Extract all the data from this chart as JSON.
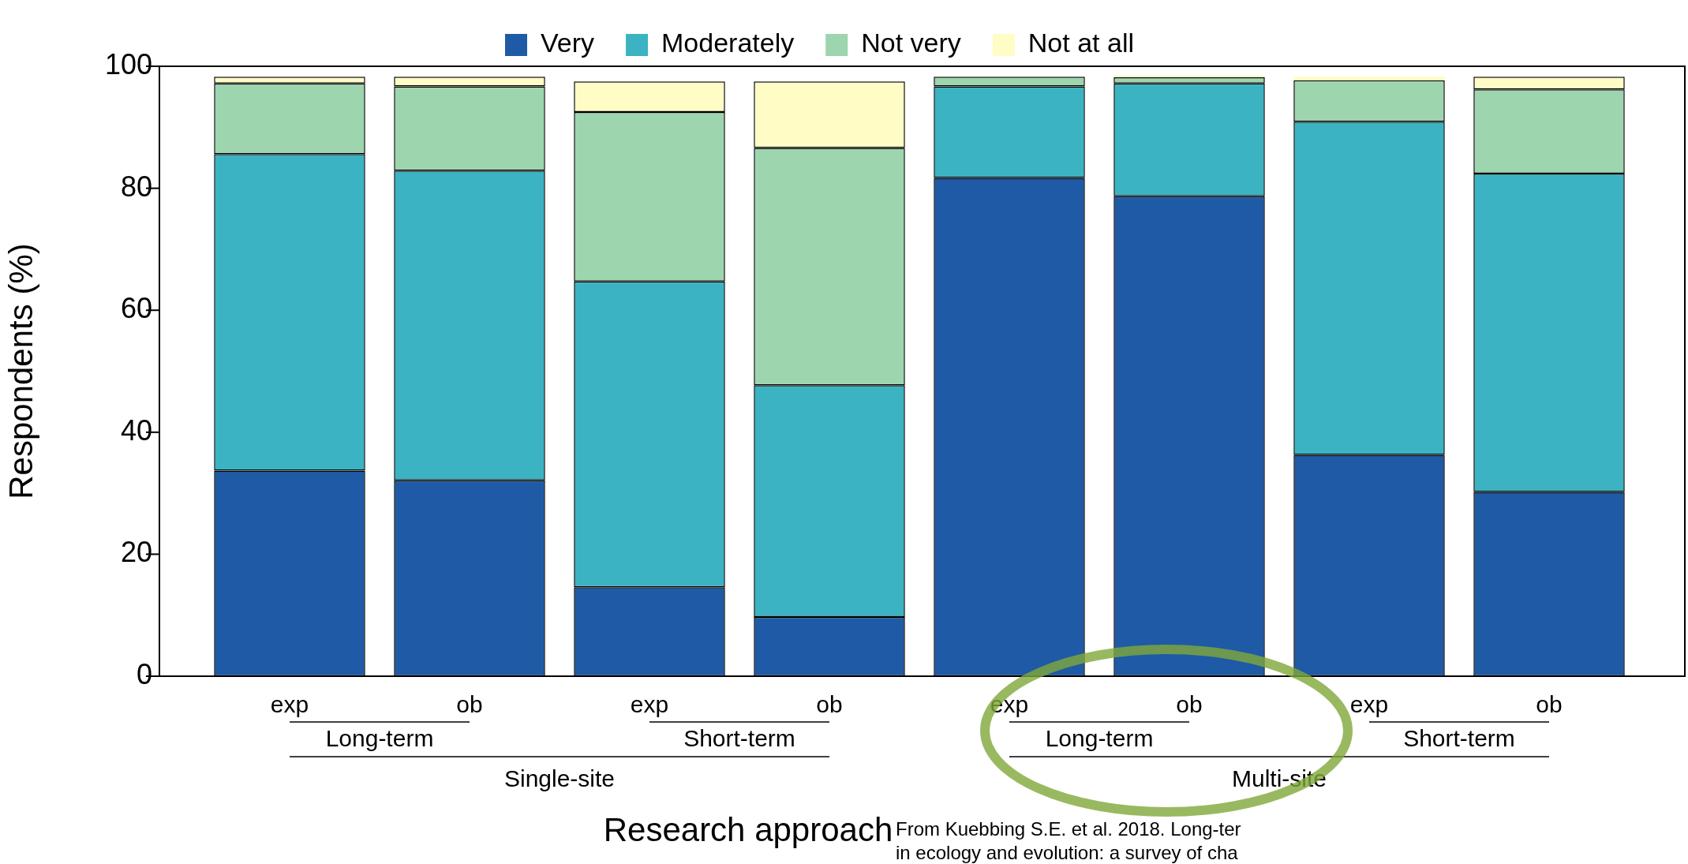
{
  "chart_data": {
    "type": "bar",
    "stacked": true,
    "legend": "top",
    "ylabel": "Respondents (%)",
    "xlabel": "Research approach",
    "categories": [
      "exp",
      "ob",
      "exp",
      "ob",
      "exp",
      "ob",
      "exp",
      "ob"
    ],
    "ylim": [
      0,
      100
    ],
    "yticks": [
      0,
      20,
      40,
      60,
      80,
      100
    ],
    "series": [
      {
        "name": "Very",
        "color": "#1f5aa6",
        "values": [
          33.7,
          32.1,
          14.6,
          9.7,
          81.7,
          78.7,
          36.3,
          30.2
        ]
      },
      {
        "name": "Moderately",
        "color": "#3bb3c3",
        "values": [
          51.9,
          50.8,
          50.1,
          38.0,
          15.0,
          18.5,
          54.6,
          52.2
        ]
      },
      {
        "name": "Not very",
        "color": "#9dd5ae",
        "values": [
          11.6,
          13.8,
          27.8,
          38.9,
          1.6,
          1.0,
          6.8,
          13.8
        ]
      },
      {
        "name": "Not at all",
        "color": "#fffcc5",
        "values": [
          1.1,
          1.6,
          5.0,
          10.9,
          null,
          0.3,
          0.6,
          2.1
        ]
      }
    ],
    "annotations": [
      "Long-term",
      "Short-term",
      "Long-term",
      "Short-term",
      "Single-site",
      "Multi-site",
      "From Kuebbing S.E. et al. 2018. Long-ter",
      "in ecology and evolution: a survey of cha"
    ]
  }
}
